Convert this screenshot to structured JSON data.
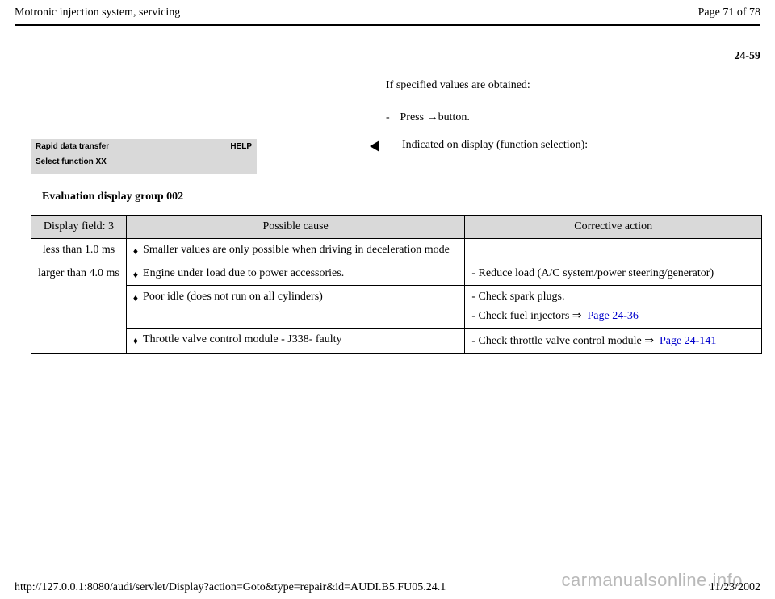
{
  "header": {
    "title": "Motronic injection system, servicing",
    "page_label": "Page 71 of 78"
  },
  "page_code": "24-59",
  "intro": "If specified values are obtained:",
  "press_line_prefix": "- ",
  "press_line_main": "Press ",
  "press_line_suffix": "button.",
  "display_box": {
    "line1_left": "Rapid data transfer",
    "line1_right": "HELP",
    "line2": "Select function XX"
  },
  "indicated_text": "Indicated on display (function selection):",
  "eval_heading": "Evaluation display group 002",
  "table": {
    "headers": [
      "Display field: 3",
      "Possible cause",
      "Corrective action"
    ],
    "rows": [
      {
        "field": "less than 1.0 ms",
        "cause": "Smaller values are only possible when driving in deceleration mode",
        "action_lines": []
      },
      {
        "field": "larger than 4.0 ms",
        "rowspan": 3,
        "cause": "Engine under load due to power accessories.",
        "action_lines": [
          {
            "text": "- Reduce load (A/C system/power steering/generator)"
          }
        ]
      },
      {
        "cause": "Poor idle (does not run on all cylinders)",
        "action_lines": [
          {
            "text": "- Check spark plugs."
          },
          {
            "text": "- Check fuel injectors  ",
            "arrow": true,
            "link": "Page 24-36"
          }
        ]
      },
      {
        "cause": "Throttle valve control module - J338- faulty",
        "action_lines": [
          {
            "text": "- Check throttle valve control module  ",
            "arrow": true,
            "link": "Page 24-141"
          }
        ]
      }
    ]
  },
  "footer": {
    "url": "http://127.0.0.1:8080/audi/servlet/Display?action=Goto&type=repair&id=AUDI.B5.FU05.24.1",
    "date": "11/23/2002"
  },
  "watermark": "carmanualsonline.info",
  "colors": {
    "grey": "#d9d9d9",
    "link": "#0000cc",
    "watermark": "#b9b9b9"
  }
}
